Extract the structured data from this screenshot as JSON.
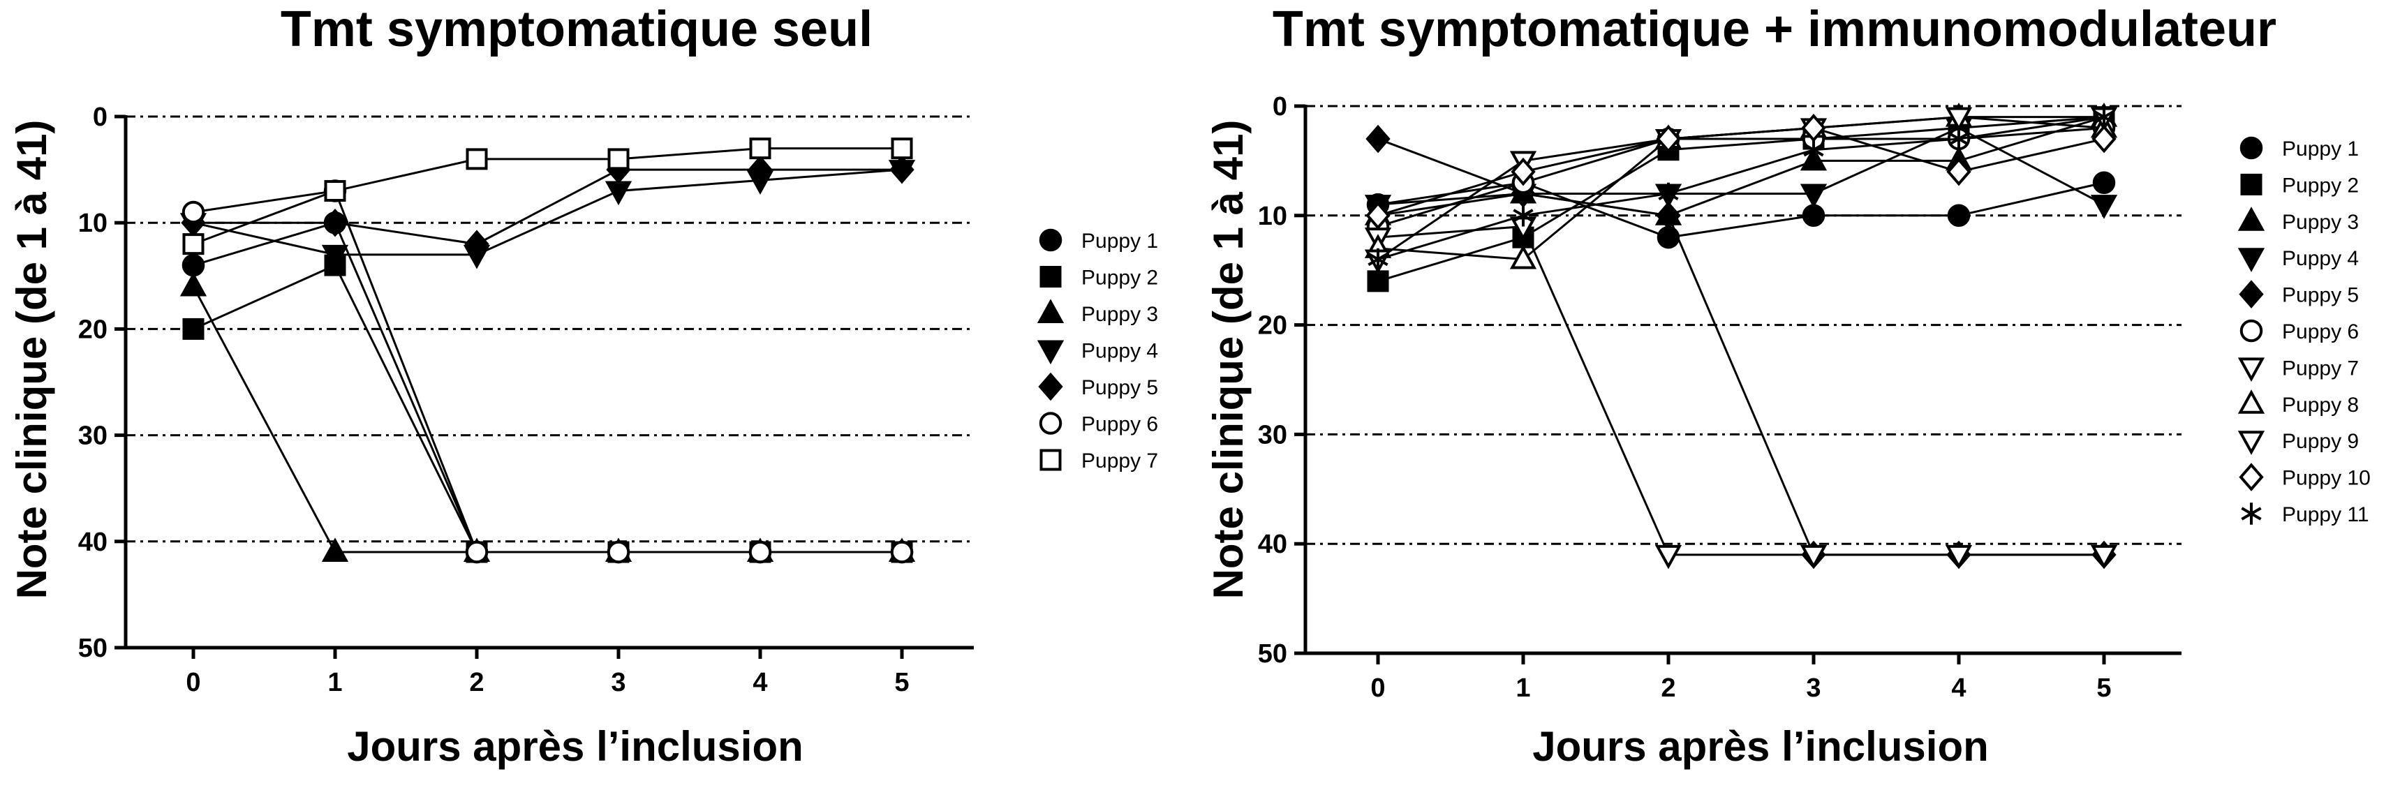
{
  "chart_data": [
    {
      "type": "line",
      "title": "Tmt symptomatique seul",
      "xlabel": "Jours après l’inclusion",
      "ylabel": "Note clinique (de 1 à 41)",
      "x": [
        0,
        1,
        2,
        3,
        4,
        5
      ],
      "x_ticks": [
        "0",
        "1",
        "2",
        "3",
        "4",
        "5"
      ],
      "y_ticks": [
        "0",
        "10",
        "20",
        "30",
        "40",
        "50"
      ],
      "ylim": [
        0,
        50
      ],
      "y_inverted": true,
      "grid": "horizontal dash-dot at each y tick",
      "legend_position": "right",
      "series": [
        {
          "name": "Puppy 1",
          "marker": "circle-filled",
          "values": [
            14,
            10,
            41,
            41,
            41,
            41
          ]
        },
        {
          "name": "Puppy 2",
          "marker": "square-filled",
          "values": [
            20,
            14,
            41,
            41,
            41,
            41
          ]
        },
        {
          "name": "Puppy 3",
          "marker": "triangle-up-filled",
          "values": [
            16,
            41,
            41,
            41,
            41,
            41
          ]
        },
        {
          "name": "Puppy 4",
          "marker": "triangle-down-filled",
          "values": [
            10,
            13,
            13,
            7,
            6,
            5
          ]
        },
        {
          "name": "Puppy 5",
          "marker": "diamond-filled",
          "values": [
            10,
            10,
            12,
            5,
            5,
            5
          ]
        },
        {
          "name": "Puppy 6",
          "marker": "circle-open",
          "values": [
            9,
            7,
            41,
            41,
            41,
            41
          ]
        },
        {
          "name": "Puppy 7",
          "marker": "square-open",
          "values": [
            12,
            7,
            4,
            4,
            3,
            3
          ]
        }
      ]
    },
    {
      "type": "line",
      "title": "Tmt symptomatique + immunomodulateur",
      "xlabel": "Jours après l’inclusion",
      "ylabel": "Note clinique (de 1 à 41)",
      "x": [
        0,
        1,
        2,
        3,
        4,
        5
      ],
      "x_ticks": [
        "0",
        "1",
        "2",
        "3",
        "4",
        "5"
      ],
      "y_ticks": [
        "0",
        "10",
        "20",
        "30",
        "40",
        "50"
      ],
      "ylim": [
        0,
        50
      ],
      "y_inverted": true,
      "grid": "horizontal dash-dot at each y tick",
      "legend_position": "right",
      "series": [
        {
          "name": "Puppy 1",
          "marker": "circle-filled",
          "values": [
            9,
            7,
            12,
            10,
            10,
            7
          ]
        },
        {
          "name": "Puppy 2",
          "marker": "square-filled",
          "values": [
            16,
            12,
            4,
            3,
            2,
            1
          ]
        },
        {
          "name": "Puppy 3",
          "marker": "triangle-up-filled",
          "values": [
            10,
            8,
            10,
            5,
            5,
            1
          ]
        },
        {
          "name": "Puppy 4",
          "marker": "triangle-down-filled",
          "values": [
            9,
            8,
            8,
            8,
            2,
            9
          ]
        },
        {
          "name": "Puppy 5",
          "marker": "diamond-filled",
          "values": [
            3,
            8,
            10,
            41,
            41,
            41
          ]
        },
        {
          "name": "Puppy 6",
          "marker": "circle-open",
          "values": [
            11,
            7,
            3,
            3,
            3,
            2
          ]
        },
        {
          "name": "Puppy 7",
          "marker": "triangle-down-open",
          "values": [
            12,
            11,
            41,
            41,
            41,
            41
          ]
        },
        {
          "name": "Puppy 8",
          "marker": "triangle-up-open",
          "values": [
            13,
            14,
            3,
            2,
            1,
            2
          ]
        },
        {
          "name": "Puppy 9",
          "marker": "triangle-down-open",
          "values": [
            14,
            5,
            3,
            2,
            1,
            1
          ]
        },
        {
          "name": "Puppy 10",
          "marker": "diamond-open",
          "values": [
            10,
            6,
            3,
            2,
            6,
            3
          ]
        },
        {
          "name": "Puppy 11",
          "marker": "asterisk",
          "values": [
            14,
            10,
            8,
            4,
            3,
            1
          ]
        }
      ]
    }
  ]
}
